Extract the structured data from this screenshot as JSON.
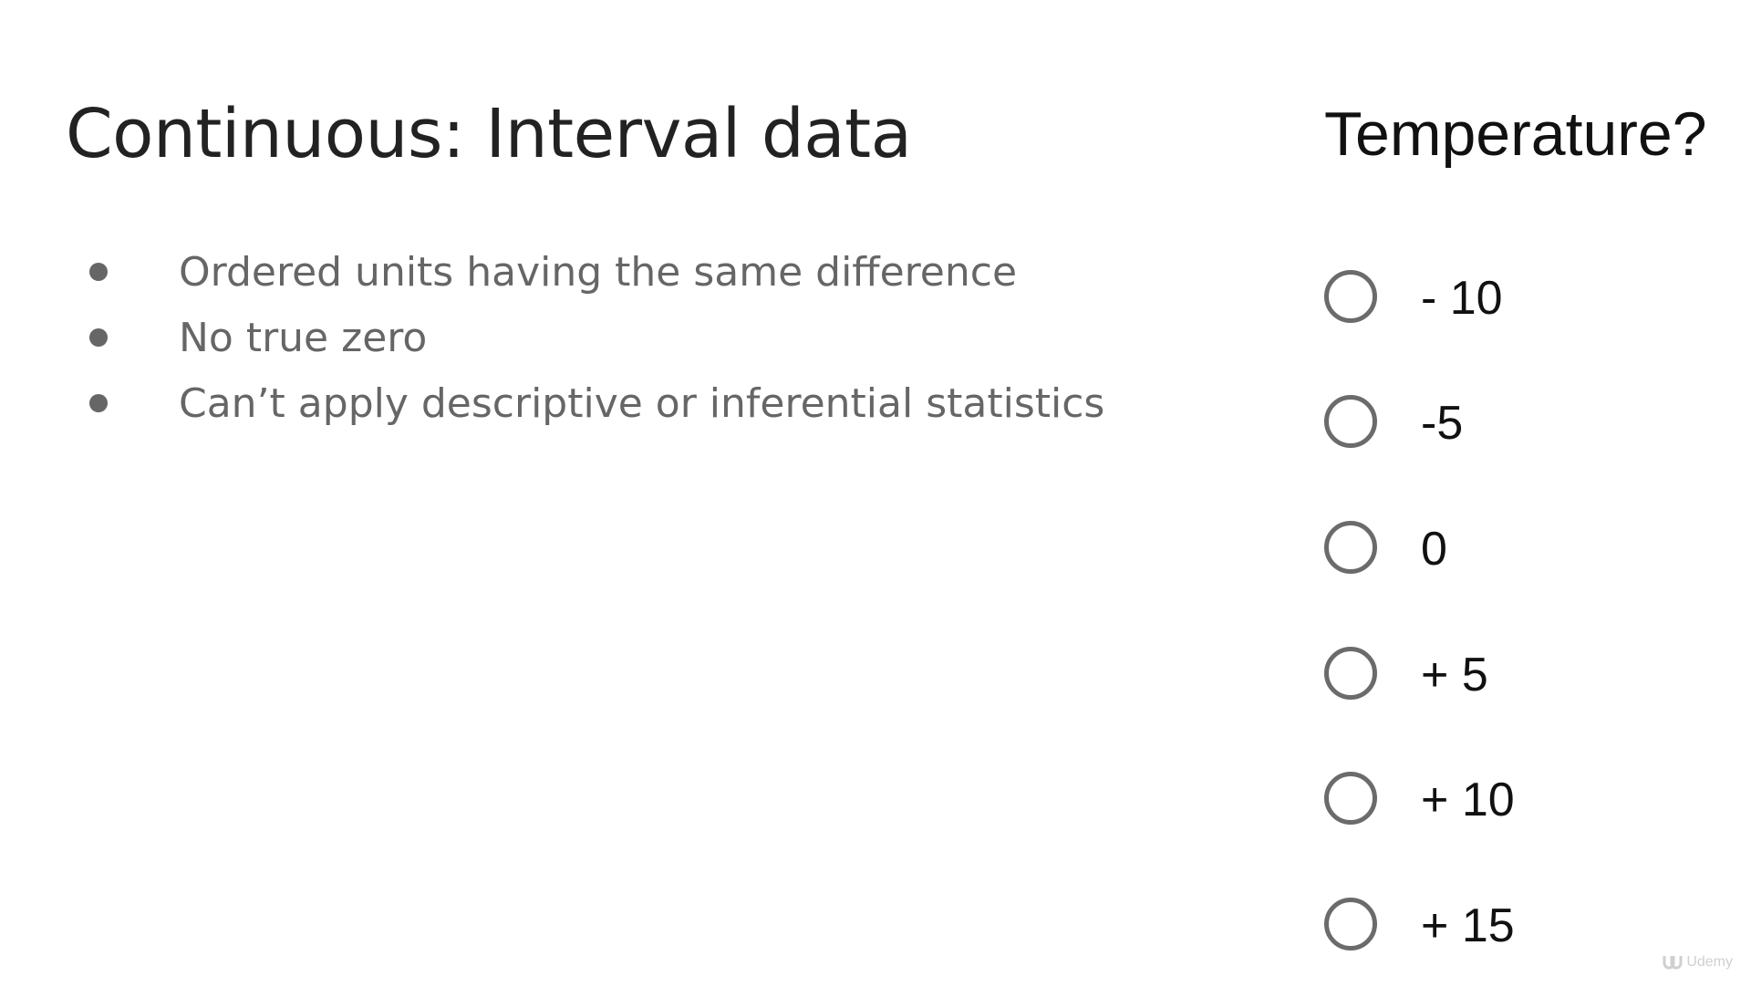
{
  "slide": {
    "title": "Continuous: Interval data",
    "bullets": [
      "Ordered units having the same difference",
      "No true zero",
      "Can’t apply descriptive or inferential statistics"
    ]
  },
  "quiz": {
    "question": "Temperature?",
    "options": [
      "- 10",
      "-5",
      "0",
      "+ 5",
      "+ 10",
      "+ 15"
    ]
  },
  "watermark": {
    "text": "Udemy",
    "icon": "udemy-logo-icon"
  },
  "colors": {
    "title": "#222222",
    "bullet_text": "#666666",
    "radio_border": "#6b6b6b",
    "option_text": "#111111"
  }
}
